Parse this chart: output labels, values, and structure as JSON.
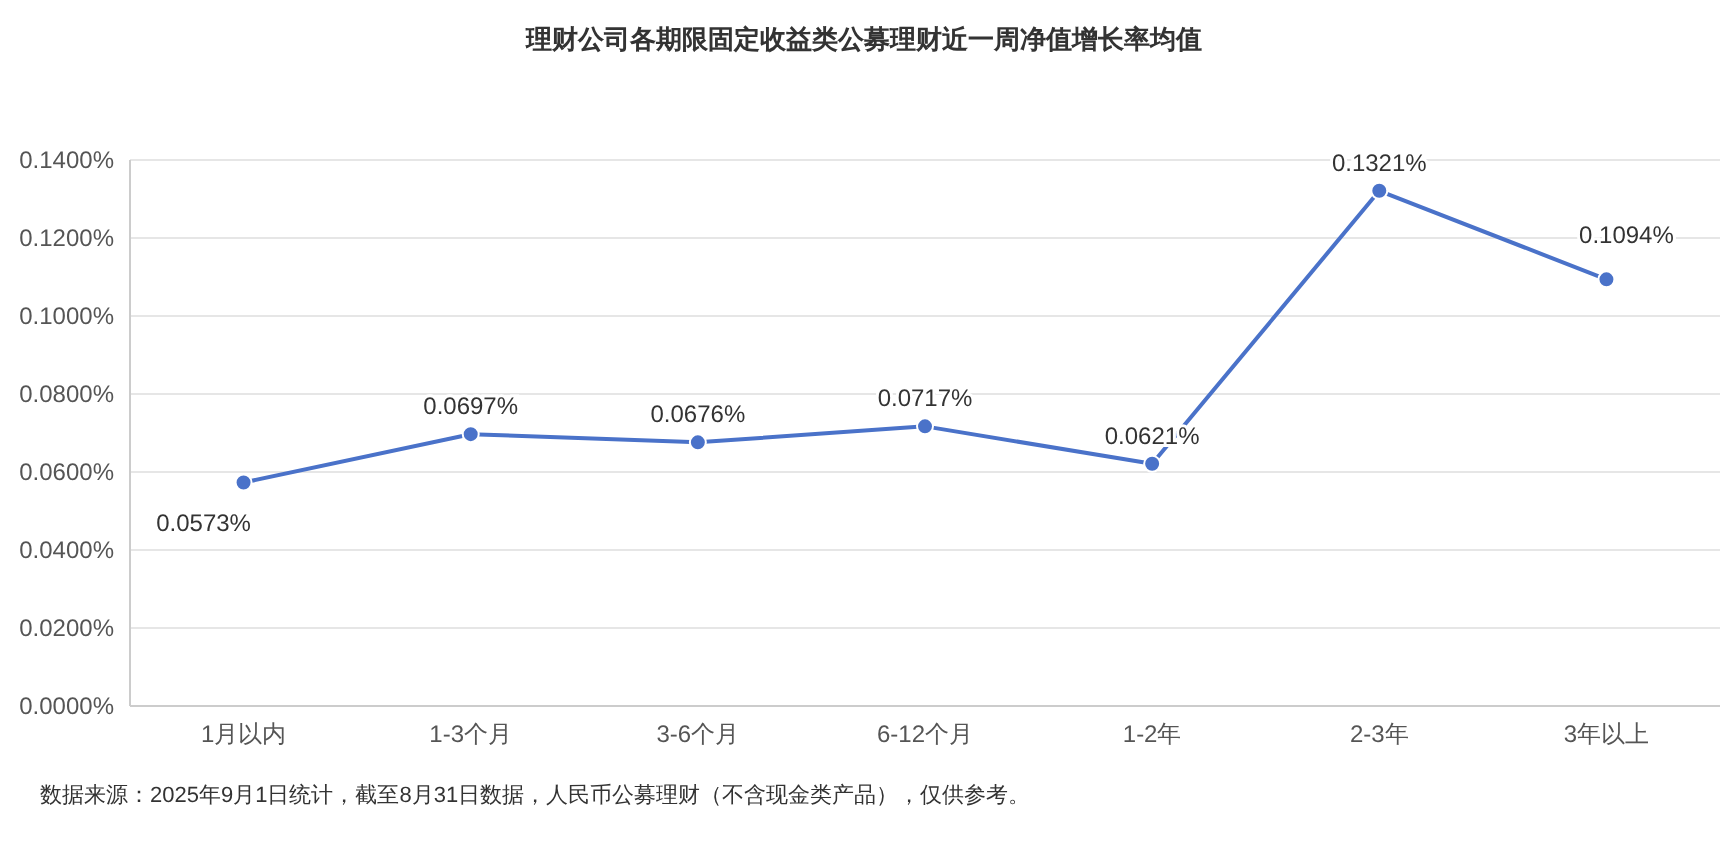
{
  "chart_data": {
    "type": "line",
    "title": "理财公司各期限固定收益类公募理财近一周净值增长率均值",
    "categories": [
      "1月以内",
      "1-3个月",
      "3-6个月",
      "6-12个月",
      "1-2年",
      "2-3年",
      "3年以上"
    ],
    "series": [
      {
        "color": "#4a72c9",
        "values": [
          0.0573,
          0.0697,
          0.0676,
          0.0717,
          0.0621,
          0.1321,
          0.1094
        ],
        "value_labels": [
          "0.0573%",
          "0.0697%",
          "0.0676%",
          "0.0717%",
          "0.0621%",
          "0.1321%",
          "0.1094%"
        ]
      }
    ],
    "ylim": [
      0,
      0.14
    ],
    "yticks": [
      {
        "value": 0,
        "label": "0.0000%"
      },
      {
        "value": 0.02,
        "label": "0.0200%"
      },
      {
        "value": 0.04,
        "label": "0.0400%"
      },
      {
        "value": 0.06,
        "label": "0.0600%"
      },
      {
        "value": 0.08,
        "label": "0.0800%"
      },
      {
        "value": 0.1,
        "label": "0.1000%"
      },
      {
        "value": 0.12,
        "label": "0.1200%"
      },
      {
        "value": 0.14,
        "label": "0.1400%"
      }
    ],
    "grid": "y",
    "marker": "circle",
    "line_style": "solid",
    "annotations": [
      "数据来源：2025年9月1日统计，截至8月31日数据，人民币公募理财（不含现金类产品），仅供参考。"
    ]
  }
}
